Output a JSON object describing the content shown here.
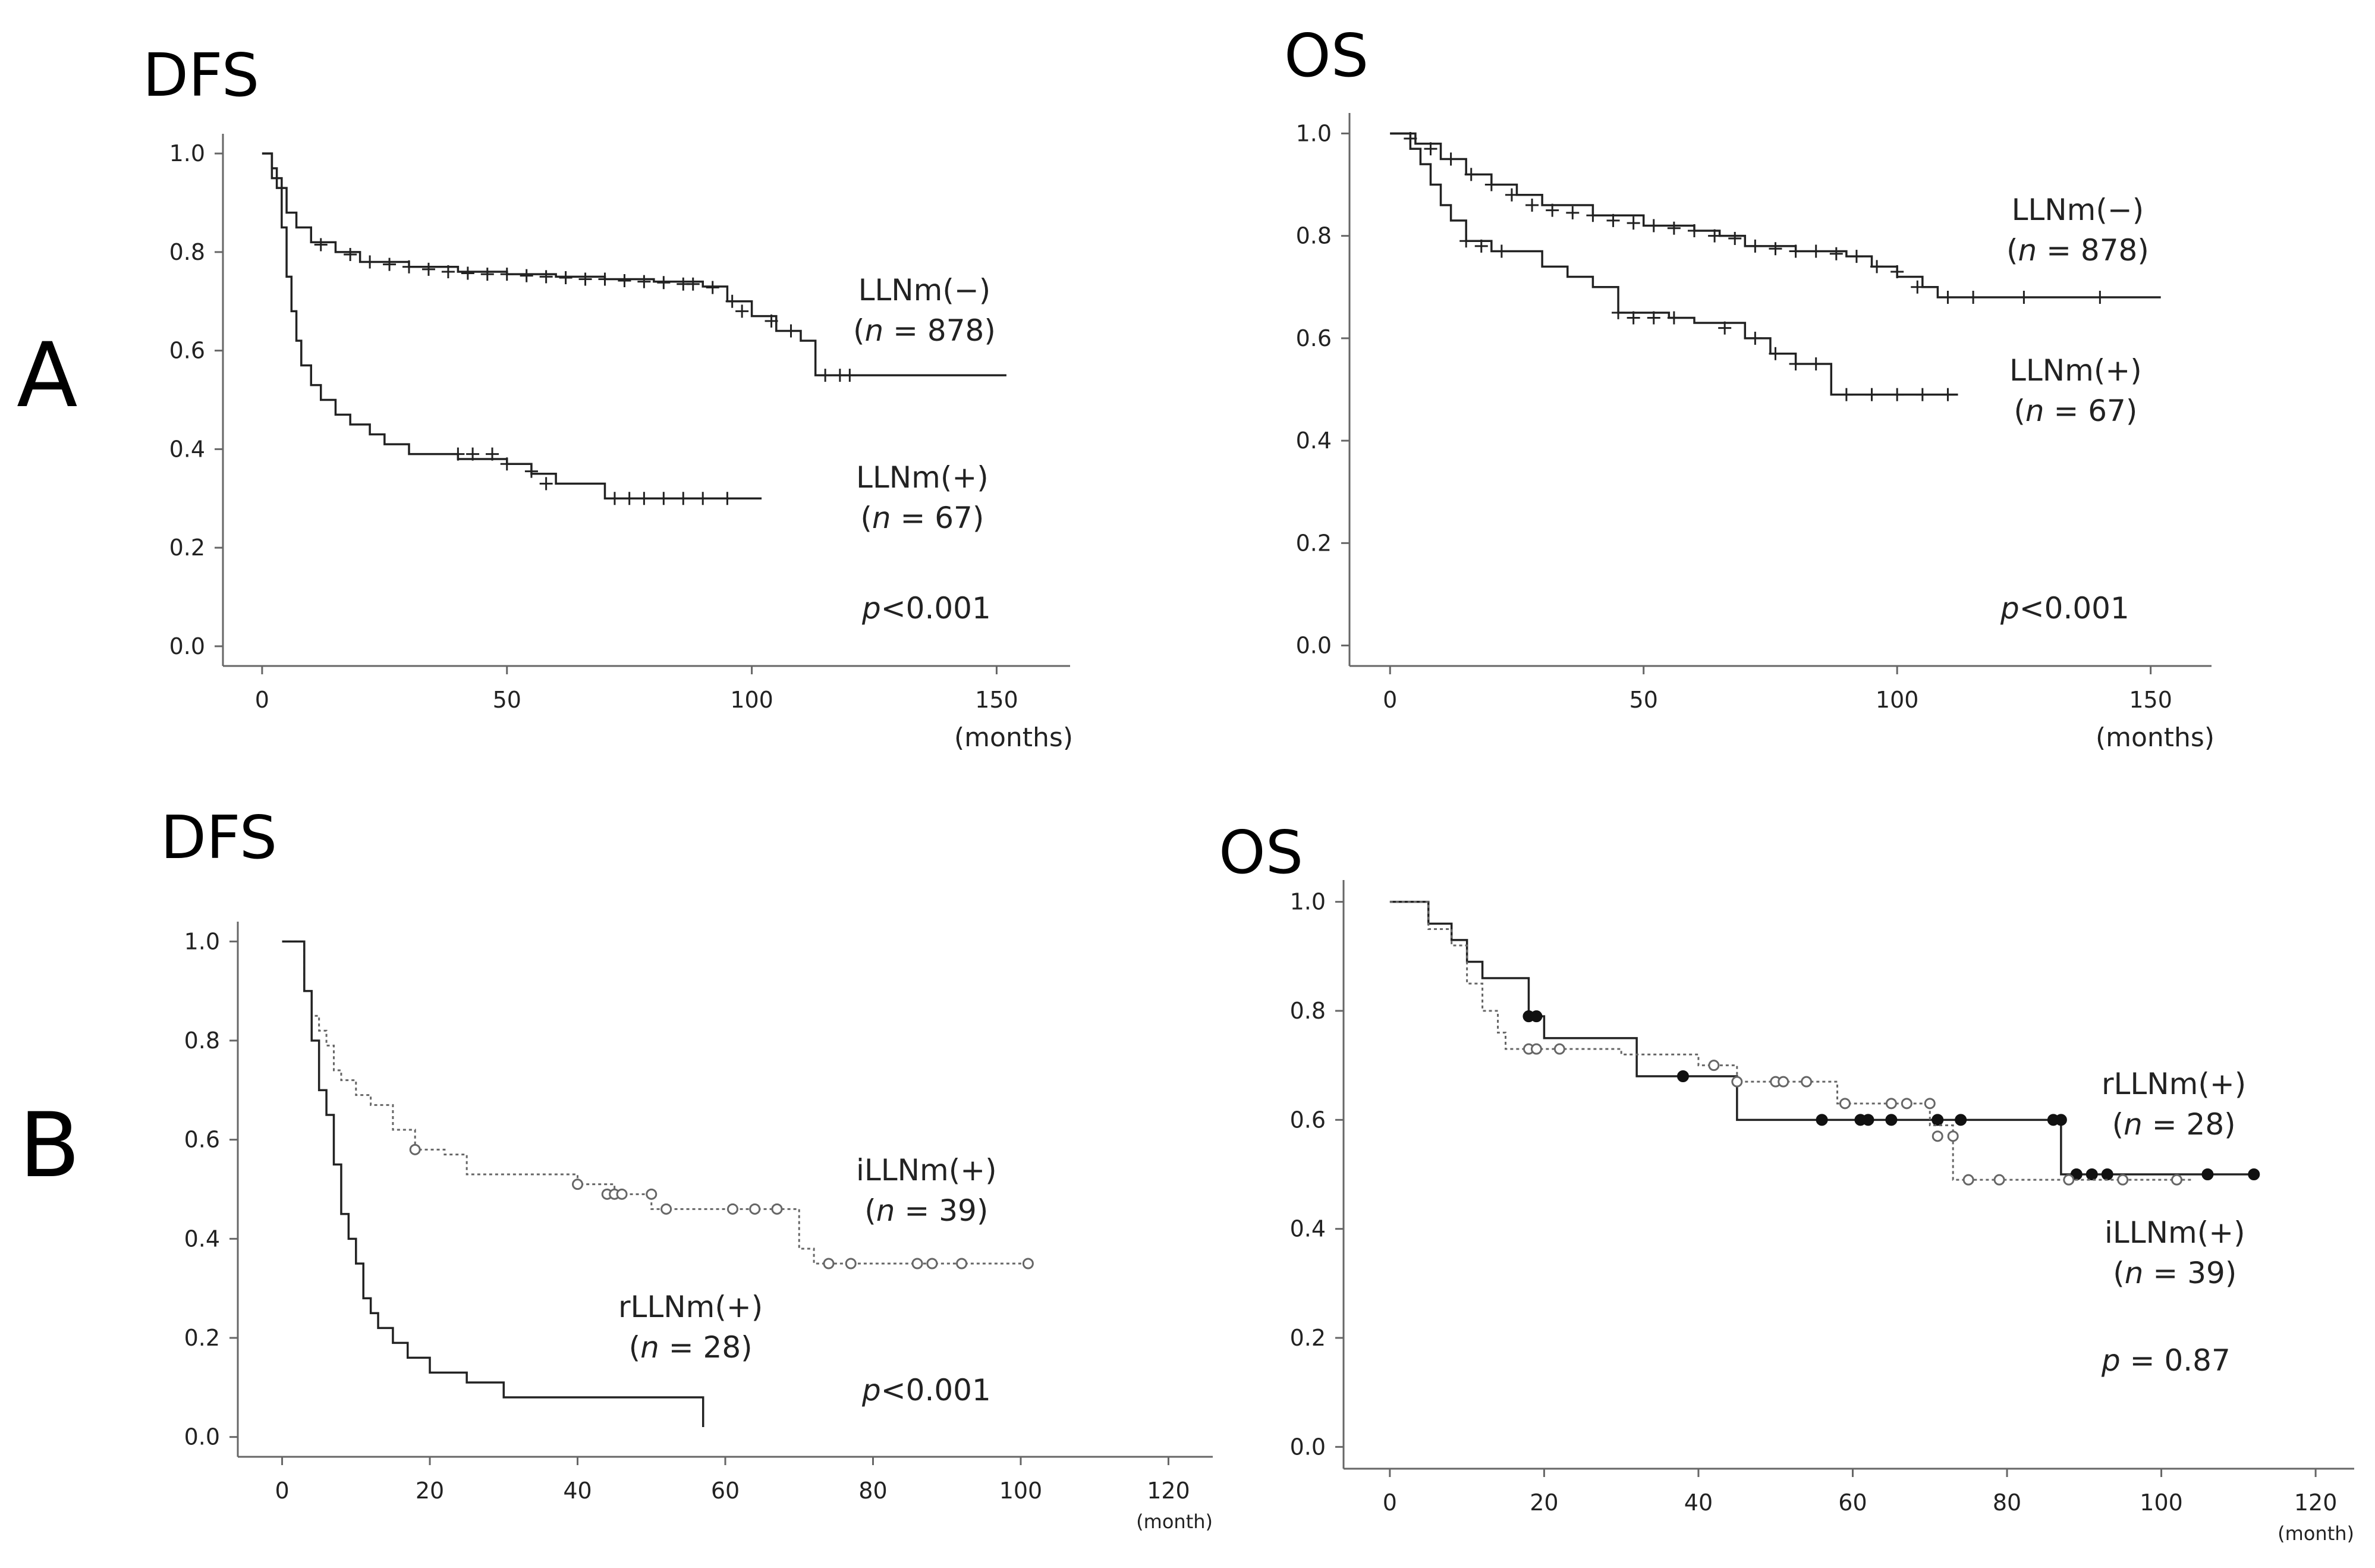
{
  "row_labels": {
    "a": "A",
    "b": "B"
  },
  "colors": {
    "solid": "#222222",
    "dotted": "#666666",
    "axis": "#666666"
  },
  "chart_data": [
    {
      "id": "A-DFS",
      "type": "line",
      "title": "DFS",
      "xlabel": "(months)",
      "ylabel": "",
      "xlim": [
        -8,
        165
      ],
      "ylim": [
        -0.04,
        1.04
      ],
      "xticks": [
        0,
        50,
        100,
        150
      ],
      "yticks": [
        "0.0",
        "0.2",
        "0.4",
        "0.6",
        "0.8",
        "1.0"
      ],
      "p_value": {
        "prefix": "p",
        "text": "<0.001"
      },
      "series": [
        {
          "name": "LLNm(−)",
          "n_label": "n = 878",
          "style": "solid",
          "censor_marker": "plus",
          "x": [
            0,
            2,
            3,
            5,
            7,
            10,
            15,
            20,
            30,
            40,
            50,
            60,
            70,
            80,
            90,
            95,
            100,
            105,
            110,
            113,
            152
          ],
          "y": [
            1.0,
            0.97,
            0.93,
            0.88,
            0.85,
            0.82,
            0.8,
            0.78,
            0.77,
            0.76,
            0.755,
            0.75,
            0.745,
            0.74,
            0.73,
            0.7,
            0.67,
            0.64,
            0.62,
            0.55,
            0.55
          ],
          "censored_x": [
            12,
            18,
            22,
            26,
            30,
            34,
            38,
            42,
            46,
            50,
            54,
            58,
            62,
            66,
            70,
            74,
            78,
            82,
            86,
            88,
            92,
            96,
            98,
            104,
            108,
            115,
            118,
            120
          ],
          "censored_y": [
            0.815,
            0.795,
            0.78,
            0.775,
            0.77,
            0.765,
            0.76,
            0.757,
            0.755,
            0.755,
            0.752,
            0.75,
            0.748,
            0.745,
            0.745,
            0.742,
            0.74,
            0.738,
            0.735,
            0.735,
            0.728,
            0.7,
            0.68,
            0.66,
            0.64,
            0.55,
            0.55,
            0.55
          ]
        },
        {
          "name": "LLNm(+)",
          "n_label": "n = 67",
          "style": "solid",
          "censor_marker": "plus",
          "x": [
            0,
            2,
            4,
            5,
            6,
            7,
            8,
            10,
            12,
            15,
            18,
            22,
            25,
            30,
            40,
            50,
            55,
            60,
            70,
            102
          ],
          "y": [
            1.0,
            0.95,
            0.85,
            0.75,
            0.68,
            0.62,
            0.57,
            0.53,
            0.5,
            0.47,
            0.45,
            0.43,
            0.41,
            0.39,
            0.38,
            0.37,
            0.35,
            0.33,
            0.3,
            0.3
          ],
          "censored_x": [
            40,
            43,
            47,
            50,
            55,
            58,
            72,
            75,
            78,
            82,
            86,
            90,
            95
          ],
          "censored_y": [
            0.39,
            0.39,
            0.39,
            0.37,
            0.355,
            0.33,
            0.3,
            0.3,
            0.3,
            0.3,
            0.3,
            0.3,
            0.3
          ]
        }
      ],
      "labels": {
        "neg": "LLNm(−)",
        "neg_n": "878",
        "pos": "LLNm(+)",
        "pos_n": "67"
      }
    },
    {
      "id": "A-OS",
      "type": "line",
      "title": "OS",
      "xlabel": "(months)",
      "ylabel": "",
      "xlim": [
        -8,
        162
      ],
      "ylim": [
        -0.04,
        1.04
      ],
      "xticks": [
        0,
        50,
        100,
        150
      ],
      "yticks": [
        "0.0",
        "0.2",
        "0.4",
        "0.6",
        "0.8",
        "1.0"
      ],
      "p_value": {
        "prefix": "p",
        "text": "<0.001"
      },
      "series": [
        {
          "name": "LLNm(−)",
          "n_label": "n = 878",
          "style": "solid",
          "censor_marker": "plus",
          "x": [
            0,
            5,
            10,
            15,
            20,
            25,
            30,
            40,
            50,
            60,
            65,
            70,
            80,
            90,
            95,
            100,
            105,
            108,
            152
          ],
          "y": [
            1.0,
            0.98,
            0.95,
            0.92,
            0.9,
            0.88,
            0.86,
            0.84,
            0.82,
            0.81,
            0.8,
            0.78,
            0.77,
            0.76,
            0.74,
            0.72,
            0.7,
            0.68,
            0.68
          ],
          "censored_x": [
            4,
            8,
            12,
            16,
            20,
            24,
            28,
            32,
            36,
            40,
            44,
            48,
            52,
            56,
            60,
            64,
            68,
            72,
            76,
            80,
            84,
            88,
            92,
            96,
            100,
            104,
            110,
            115,
            125,
            140
          ],
          "censored_y": [
            0.99,
            0.97,
            0.95,
            0.92,
            0.9,
            0.88,
            0.86,
            0.85,
            0.845,
            0.84,
            0.83,
            0.825,
            0.82,
            0.815,
            0.81,
            0.8,
            0.795,
            0.78,
            0.775,
            0.77,
            0.77,
            0.765,
            0.76,
            0.74,
            0.73,
            0.7,
            0.68,
            0.68,
            0.68,
            0.68
          ]
        },
        {
          "name": "LLNm(+)",
          "n_label": "n = 67",
          "style": "solid",
          "censor_marker": "plus",
          "x": [
            0,
            4,
            6,
            8,
            10,
            12,
            15,
            20,
            30,
            35,
            40,
            45,
            55,
            60,
            70,
            75,
            80,
            87,
            112
          ],
          "y": [
            1.0,
            0.97,
            0.94,
            0.9,
            0.86,
            0.83,
            0.79,
            0.77,
            0.74,
            0.72,
            0.7,
            0.65,
            0.64,
            0.63,
            0.6,
            0.57,
            0.55,
            0.49,
            0.49
          ],
          "censored_x": [
            15,
            18,
            22,
            45,
            48,
            52,
            56,
            66,
            72,
            76,
            80,
            84,
            90,
            95,
            100,
            105,
            110
          ],
          "censored_y": [
            0.79,
            0.78,
            0.77,
            0.65,
            0.64,
            0.64,
            0.64,
            0.62,
            0.6,
            0.57,
            0.55,
            0.55,
            0.49,
            0.49,
            0.49,
            0.49,
            0.49
          ]
        }
      ],
      "labels": {
        "neg": "LLNm(−)",
        "neg_n": "878",
        "pos": "LLNm(+)",
        "pos_n": "67"
      }
    },
    {
      "id": "B-DFS",
      "type": "line",
      "title": "DFS",
      "xlabel": "(month)",
      "ylabel": "",
      "xlim": [
        -6,
        126
      ],
      "ylim": [
        -0.04,
        1.04
      ],
      "xticks": [
        0,
        20,
        40,
        60,
        80,
        100,
        120
      ],
      "yticks": [
        "0.0",
        "0.2",
        "0.4",
        "0.6",
        "0.8",
        "1.0"
      ],
      "p_value": {
        "prefix": "p",
        "text": "<0.001"
      },
      "series": [
        {
          "name": "iLLNm(+)",
          "n_label": "n = 39",
          "style": "dotted",
          "censor_marker": "circle",
          "x": [
            0,
            3,
            4,
            5,
            6,
            7,
            8,
            10,
            12,
            15,
            18,
            22,
            25,
            40,
            45,
            50,
            52,
            70,
            72,
            102
          ],
          "y": [
            1.0,
            0.9,
            0.85,
            0.82,
            0.79,
            0.74,
            0.72,
            0.69,
            0.67,
            0.62,
            0.58,
            0.57,
            0.53,
            0.51,
            0.49,
            0.46,
            0.46,
            0.38,
            0.35,
            0.35
          ],
          "censored_x": [
            18,
            40,
            44,
            45,
            46,
            50,
            52,
            61,
            64,
            67,
            74,
            77,
            86,
            88,
            92,
            101
          ],
          "censored_y": [
            0.58,
            0.51,
            0.49,
            0.49,
            0.49,
            0.49,
            0.46,
            0.46,
            0.46,
            0.46,
            0.35,
            0.35,
            0.35,
            0.35,
            0.35,
            0.35
          ]
        },
        {
          "name": "rLLNm(+)",
          "n_label": "n = 28",
          "style": "solid",
          "censor_marker": "none",
          "x": [
            0,
            3,
            4,
            5,
            6,
            7,
            8,
            9,
            10,
            11,
            12,
            13,
            15,
            17,
            20,
            25,
            30,
            57,
            57
          ],
          "y": [
            1.0,
            0.9,
            0.8,
            0.7,
            0.65,
            0.55,
            0.45,
            0.4,
            0.35,
            0.28,
            0.25,
            0.22,
            0.19,
            0.16,
            0.13,
            0.11,
            0.08,
            0.08,
            0.02
          ]
        }
      ],
      "labels": {
        "i": "iLLNm(+)",
        "i_n": "39",
        "r": "rLLNm(+)",
        "r_n": "28"
      }
    },
    {
      "id": "B-OS",
      "type": "line",
      "title": "OS",
      "xlabel": "(month)",
      "ylabel": "",
      "xlim": [
        -6,
        125
      ],
      "ylim": [
        -0.04,
        1.04
      ],
      "xticks": [
        0,
        20,
        40,
        60,
        80,
        100,
        120
      ],
      "yticks": [
        "0.0",
        "0.2",
        "0.4",
        "0.6",
        "0.8",
        "1.0"
      ],
      "p_value": {
        "prefix": "p",
        "text": "= 0.87"
      },
      "series": [
        {
          "name": "rLLNm(+)",
          "n_label": "n = 28",
          "style": "solid",
          "censor_marker": "dot",
          "x": [
            0,
            5,
            8,
            10,
            12,
            18,
            20,
            32,
            45,
            87,
            112
          ],
          "y": [
            1.0,
            0.96,
            0.93,
            0.89,
            0.86,
            0.79,
            0.75,
            0.68,
            0.6,
            0.5,
            0.5
          ],
          "censored_x": [
            18,
            19,
            38,
            56,
            61,
            62,
            65,
            71,
            74,
            86,
            87,
            89,
            91,
            93,
            106,
            112
          ],
          "censored_y": [
            0.79,
            0.79,
            0.68,
            0.6,
            0.6,
            0.6,
            0.6,
            0.6,
            0.6,
            0.6,
            0.6,
            0.5,
            0.5,
            0.5,
            0.5,
            0.5
          ]
        },
        {
          "name": "iLLNm(+)",
          "n_label": "n = 39",
          "style": "dotted",
          "censor_marker": "circle",
          "x": [
            0,
            5,
            8,
            10,
            12,
            14,
            15,
            30,
            40,
            45,
            50,
            58,
            70,
            73,
            104
          ],
          "y": [
            1.0,
            0.95,
            0.92,
            0.85,
            0.8,
            0.76,
            0.73,
            0.72,
            0.7,
            0.67,
            0.67,
            0.63,
            0.59,
            0.49,
            0.49
          ],
          "censored_x": [
            18,
            19,
            22,
            42,
            45,
            50,
            51,
            54,
            59,
            65,
            67,
            70,
            71,
            73,
            75,
            79,
            88,
            95,
            102
          ],
          "censored_y": [
            0.73,
            0.73,
            0.73,
            0.7,
            0.67,
            0.67,
            0.67,
            0.67,
            0.63,
            0.63,
            0.63,
            0.63,
            0.57,
            0.57,
            0.49,
            0.49,
            0.49,
            0.49,
            0.49
          ]
        }
      ],
      "labels": {
        "r": "rLLNm(+)",
        "r_n": "28",
        "i": "iLLNm(+)",
        "i_n": "39"
      }
    }
  ]
}
